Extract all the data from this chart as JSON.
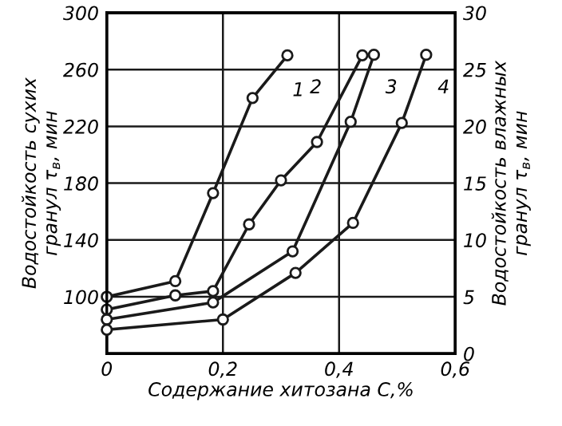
{
  "chart_data": {
    "type": "line",
    "xlabel": "Содержание хитозана С,%",
    "ylabel": "Водостойкость сухих\nгранул τ$_{в}$, мин",
    "y2label": "Водостойкость влажных\nгранул τ$_{в}$, мин",
    "xlim": [
      0,
      0.6
    ],
    "xticks": [
      {
        "value": 0,
        "label": "0"
      },
      {
        "value": 0.2,
        "label": "0,2"
      },
      {
        "value": 0.4,
        "label": "0,4"
      },
      {
        "value": 0.6,
        "label": "0,6"
      }
    ],
    "ylim": [
      60,
      300
    ],
    "yticks": [
      100,
      140,
      180,
      220,
      260,
      300
    ],
    "y2lim": [
      0,
      30
    ],
    "y2ticks": [
      0,
      5,
      10,
      15,
      20,
      25,
      30
    ],
    "grid": true,
    "marker": "circle",
    "line_style": "solid",
    "series": [
      {
        "color": "#1a1a1a",
        "x": [
          0,
          0.118,
          0.183,
          0.251,
          0.311
        ],
        "values": [
          100,
          111,
          173,
          240,
          270
        ]
      },
      {
        "color": "#1a1a1a",
        "x": [
          0,
          0.118,
          0.183,
          0.245,
          0.3,
          0.362,
          0.44
        ],
        "values": [
          91,
          101,
          104,
          151,
          182,
          209,
          270
        ]
      },
      {
        "color": "#1a1a1a",
        "axis": "y2",
        "x": [
          0,
          0.183,
          0.32,
          0.42,
          0.46
        ],
        "values": [
          3.0,
          4.5,
          9.0,
          20.4,
          26.3
        ]
      },
      {
        "color": "#1a1a1a",
        "axis": "y2",
        "x": [
          0,
          0.2,
          0.325,
          0.424,
          0.508,
          0.55
        ],
        "values": [
          2.1,
          3.0,
          7.1,
          11.5,
          20.3,
          26.3
        ]
      }
    ],
    "annotations": [
      {
        "text": "1",
        "x": 0.33,
        "y": 245
      },
      {
        "text": "2",
        "x": 0.36,
        "y": 247
      },
      {
        "text": "3",
        "x": 0.49,
        "y": 247
      },
      {
        "text": "4",
        "x": 0.58,
        "y": 247
      }
    ]
  }
}
